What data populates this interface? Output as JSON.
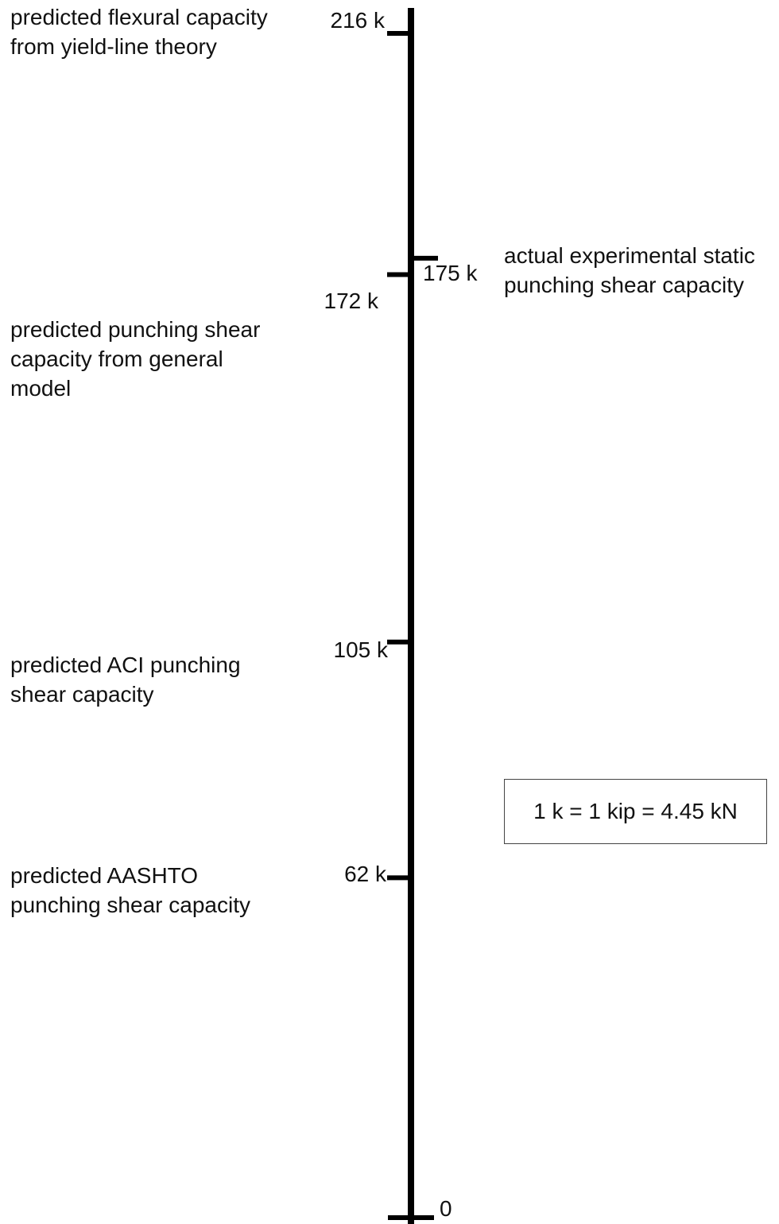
{
  "chart_data": {
    "type": "scale",
    "unit": "k",
    "ylim": [
      0,
      216
    ],
    "axis_min_label": "0",
    "points": [
      {
        "value": 216,
        "label": "216 k",
        "side": "left",
        "description": "predicted flexural capacity\nfrom yield-line theory"
      },
      {
        "value": 175,
        "label": "175 k",
        "side": "right",
        "description": "actual experimental static\npunching shear capacity"
      },
      {
        "value": 172,
        "label": "172 k",
        "side": "left",
        "description": "predicted punching shear\ncapacity from general\nmodel"
      },
      {
        "value": 105,
        "label": "105 k",
        "side": "left",
        "description": "predicted ACI punching\nshear capacity"
      },
      {
        "value": 62,
        "label": "62 k",
        "side": "left",
        "description": "predicted AASHTO\npunching shear capacity"
      }
    ]
  },
  "conversion_note": "1 k = 1 kip = 4.45 kN",
  "colors": {
    "axis": "#000000",
    "text": "#111111",
    "box_border": "#444444"
  }
}
